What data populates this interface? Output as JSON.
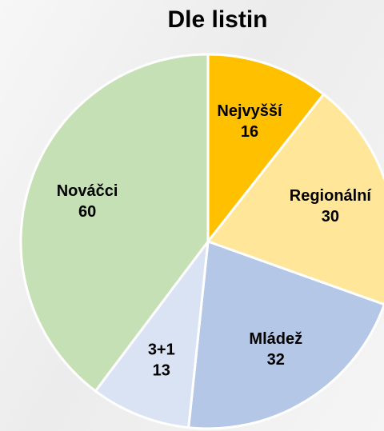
{
  "chart_data": {
    "type": "pie",
    "title": "Dle listin",
    "categories": [
      "Nejvyšší",
      "Regionální",
      "Mládež",
      "3+1",
      "Nováčci"
    ],
    "values": [
      16,
      30,
      32,
      13,
      60
    ],
    "colors": [
      "#FFC000",
      "#FFE699",
      "#B4C7E7",
      "#DAE3F3",
      "#C5E0B4"
    ]
  }
}
